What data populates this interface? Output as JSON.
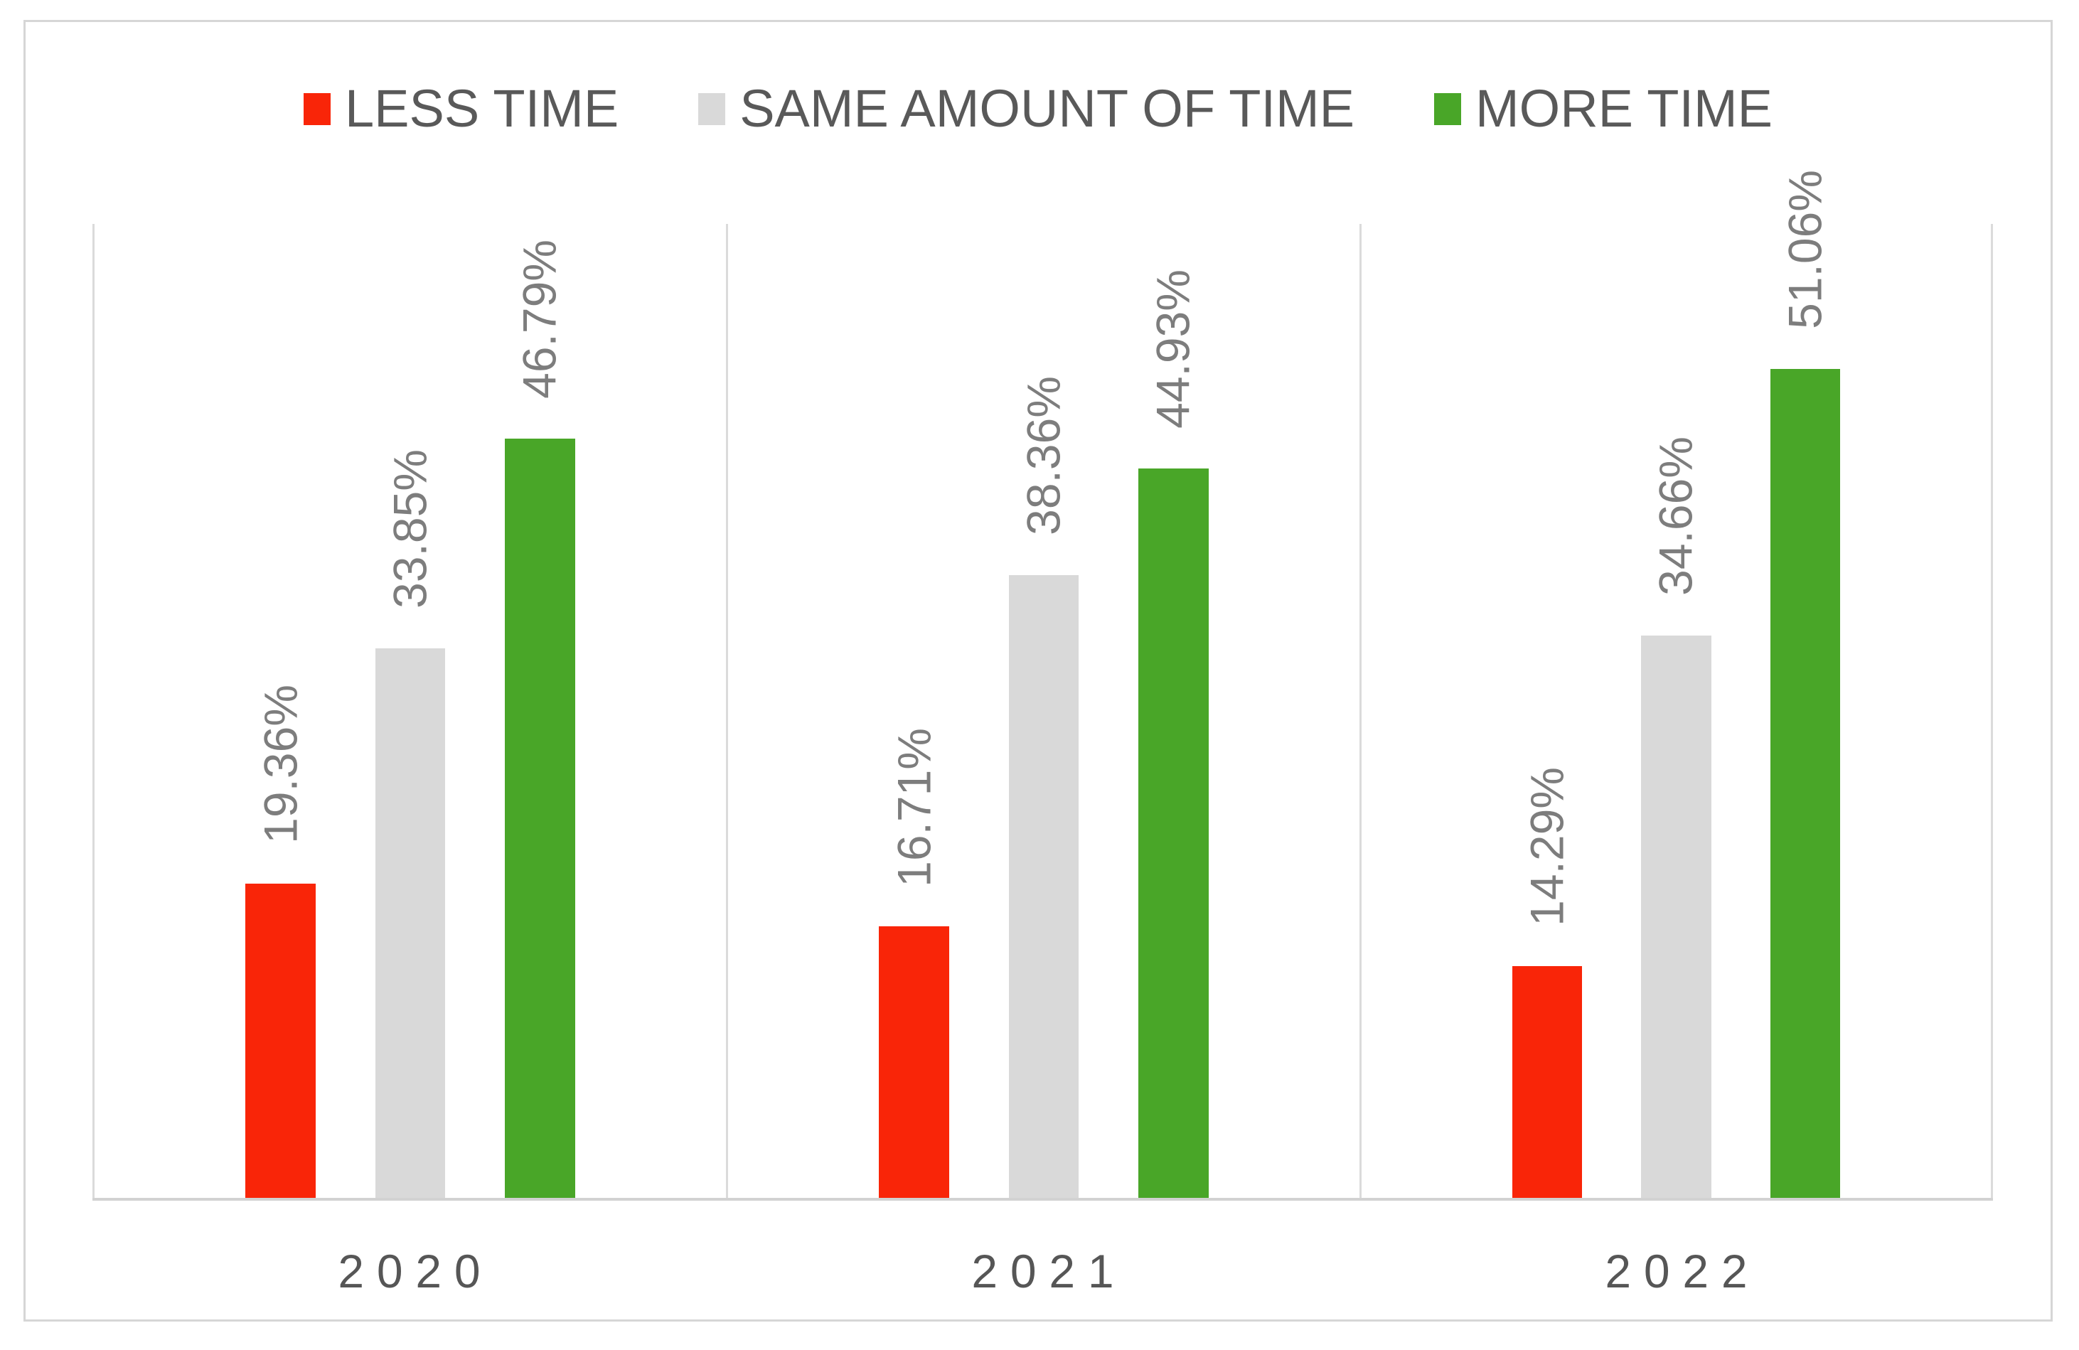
{
  "chart_data": {
    "type": "bar",
    "title": "",
    "categories": [
      "2020",
      "2021",
      "2022"
    ],
    "series": [
      {
        "name": "LESS TIME",
        "color": "#f92508",
        "values": [
          19.36,
          16.71,
          14.29
        ],
        "labels": [
          "19.36%",
          "16.71%",
          "14.29%"
        ]
      },
      {
        "name": "SAME AMOUNT OF TIME",
        "color": "#d9d9d9",
        "values": [
          33.85,
          38.36,
          34.66
        ],
        "labels": [
          "33.85%",
          "38.36%",
          "34.66%"
        ]
      },
      {
        "name": "MORE TIME",
        "color": "#49a628",
        "values": [
          46.79,
          44.93,
          51.06
        ],
        "labels": [
          "46.79%",
          "44.93%",
          "51.06%"
        ]
      }
    ],
    "xlabel": "",
    "ylabel": "",
    "ylim": [
      0,
      60
    ],
    "value_axis_visible": false,
    "grid": "vertical panel borders only, light gray",
    "legend_position": "top",
    "data_label_rotation": -90,
    "colors": {
      "data_label": "#7d7d7d",
      "legend_text": "#595959",
      "axis_text": "#565656",
      "gridline": "#dbdbdb",
      "axis_line": "#d2d2d2",
      "card_border": "#d6d6d6"
    }
  }
}
